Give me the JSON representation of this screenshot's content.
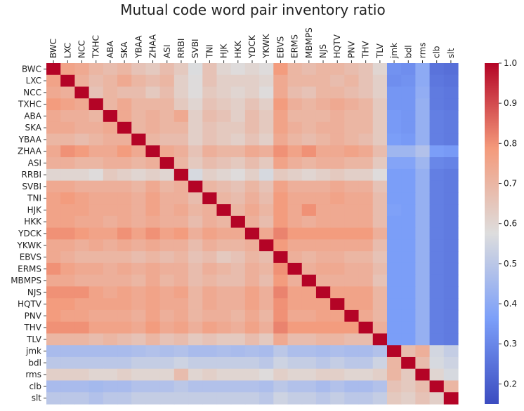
{
  "chart_data": {
    "type": "heatmap",
    "title": "Mutual code word pair inventory ratio",
    "labels": [
      "BWC",
      "LXC",
      "NCC",
      "TXHC",
      "ABA",
      "SKA",
      "YBAA",
      "ZHAA",
      "ASI",
      "RRBI",
      "SVBI",
      "TNI",
      "HJK",
      "HKK",
      "YDCK",
      "YKWK",
      "EBVS",
      "ERMS",
      "MBMPS",
      "NJS",
      "HQTV",
      "PNV",
      "THV",
      "TLV",
      "jmk",
      "bdl",
      "rms",
      "clb",
      "slt"
    ],
    "x_tick_labels": [
      "BWC",
      "LXC",
      "NCC",
      "TXHC",
      "ABA",
      "SKA",
      "YBAA",
      "ZHAA",
      "ASI",
      "RRBI",
      "SVBI",
      "TNI",
      "HJK",
      "HKK",
      "YDCK",
      "YKWK",
      "EBVS",
      "ERMS",
      "MBMPS",
      "NJS",
      "HQTV",
      "PNV",
      "THV",
      "TLV",
      "jmk",
      "bdl",
      "rms",
      "clb",
      "slt"
    ],
    "y_tick_labels": [
      "BWC",
      "LXC",
      "NCC",
      "TXHC",
      "ABA",
      "SKA",
      "YBAA",
      "ZHAA",
      "ASI",
      "RRBI",
      "SVBI",
      "TNI",
      "HJK",
      "HKK",
      "YDCK",
      "YKWK",
      "EBVS",
      "ERMS",
      "MBMPS",
      "NJS",
      "HQTV",
      "PNV",
      "THV",
      "TLV",
      "jmk",
      "bdl",
      "rms",
      "clb",
      "slt"
    ],
    "colorbar": {
      "min": 0.15,
      "max": 1.0,
      "ticks": [
        "1.0",
        "0.9",
        "0.8",
        "0.7",
        "0.6",
        "0.5",
        "0.4",
        "0.3",
        "0.2"
      ],
      "colormap": "coolwarm"
    },
    "values": [
      [
        1.0,
        0.76,
        0.74,
        0.7,
        0.68,
        0.7,
        0.66,
        0.64,
        0.68,
        0.64,
        0.57,
        0.66,
        0.6,
        0.58,
        0.6,
        0.58,
        0.78,
        0.7,
        0.68,
        0.7,
        0.7,
        0.68,
        0.66,
        0.6,
        0.33,
        0.32,
        0.4,
        0.25,
        0.24
      ],
      [
        0.76,
        1.0,
        0.72,
        0.68,
        0.7,
        0.74,
        0.7,
        0.68,
        0.7,
        0.62,
        0.58,
        0.66,
        0.62,
        0.62,
        0.62,
        0.6,
        0.74,
        0.7,
        0.7,
        0.7,
        0.68,
        0.7,
        0.66,
        0.62,
        0.32,
        0.33,
        0.4,
        0.26,
        0.25
      ],
      [
        0.74,
        0.72,
        1.0,
        0.66,
        0.7,
        0.68,
        0.68,
        0.64,
        0.68,
        0.62,
        0.58,
        0.64,
        0.62,
        0.6,
        0.62,
        0.58,
        0.74,
        0.68,
        0.66,
        0.7,
        0.7,
        0.68,
        0.66,
        0.62,
        0.34,
        0.34,
        0.41,
        0.27,
        0.26
      ],
      [
        0.78,
        0.76,
        0.74,
        1.0,
        0.7,
        0.74,
        0.7,
        0.7,
        0.7,
        0.64,
        0.6,
        0.66,
        0.64,
        0.62,
        0.66,
        0.62,
        0.78,
        0.72,
        0.7,
        0.72,
        0.74,
        0.72,
        0.7,
        0.64,
        0.34,
        0.34,
        0.42,
        0.27,
        0.26
      ],
      [
        0.74,
        0.72,
        0.72,
        0.7,
        1.0,
        0.74,
        0.7,
        0.72,
        0.7,
        0.74,
        0.62,
        0.68,
        0.66,
        0.62,
        0.68,
        0.64,
        0.76,
        0.7,
        0.7,
        0.7,
        0.72,
        0.7,
        0.7,
        0.64,
        0.35,
        0.34,
        0.42,
        0.28,
        0.27
      ],
      [
        0.74,
        0.74,
        0.72,
        0.72,
        0.74,
        1.0,
        0.7,
        0.72,
        0.7,
        0.7,
        0.62,
        0.66,
        0.64,
        0.64,
        0.68,
        0.64,
        0.76,
        0.72,
        0.7,
        0.72,
        0.72,
        0.7,
        0.7,
        0.64,
        0.35,
        0.34,
        0.42,
        0.28,
        0.27
      ],
      [
        0.7,
        0.7,
        0.68,
        0.7,
        0.72,
        0.72,
        1.0,
        0.7,
        0.68,
        0.68,
        0.62,
        0.66,
        0.64,
        0.62,
        0.66,
        0.62,
        0.74,
        0.7,
        0.68,
        0.7,
        0.72,
        0.7,
        0.68,
        0.64,
        0.36,
        0.35,
        0.42,
        0.28,
        0.27
      ],
      [
        0.74,
        0.8,
        0.78,
        0.74,
        0.74,
        0.78,
        0.74,
        1.0,
        0.74,
        0.72,
        0.66,
        0.72,
        0.7,
        0.7,
        0.74,
        0.72,
        0.8,
        0.76,
        0.8,
        0.74,
        0.74,
        0.76,
        0.74,
        0.68,
        0.44,
        0.44,
        0.48,
        0.36,
        0.35
      ],
      [
        0.72,
        0.72,
        0.7,
        0.7,
        0.72,
        0.72,
        0.7,
        0.72,
        1.0,
        0.7,
        0.64,
        0.68,
        0.66,
        0.64,
        0.68,
        0.64,
        0.76,
        0.72,
        0.7,
        0.72,
        0.72,
        0.7,
        0.7,
        0.64,
        0.38,
        0.38,
        0.44,
        0.3,
        0.29
      ],
      [
        0.6,
        0.6,
        0.6,
        0.58,
        0.64,
        0.62,
        0.6,
        0.62,
        0.6,
        1.0,
        0.56,
        0.62,
        0.6,
        0.58,
        0.62,
        0.56,
        0.64,
        0.62,
        0.6,
        0.62,
        0.64,
        0.62,
        0.62,
        0.58,
        0.36,
        0.36,
        0.42,
        0.28,
        0.27
      ],
      [
        0.74,
        0.74,
        0.72,
        0.72,
        0.72,
        0.72,
        0.7,
        0.74,
        0.7,
        0.72,
        1.0,
        0.7,
        0.68,
        0.66,
        0.7,
        0.66,
        0.76,
        0.72,
        0.72,
        0.72,
        0.74,
        0.72,
        0.72,
        0.66,
        0.36,
        0.36,
        0.42,
        0.28,
        0.27
      ],
      [
        0.76,
        0.78,
        0.76,
        0.74,
        0.74,
        0.74,
        0.72,
        0.76,
        0.72,
        0.72,
        0.68,
        1.0,
        0.7,
        0.68,
        0.72,
        0.68,
        0.78,
        0.74,
        0.74,
        0.74,
        0.76,
        0.74,
        0.74,
        0.68,
        0.36,
        0.36,
        0.42,
        0.28,
        0.27
      ],
      [
        0.76,
        0.76,
        0.76,
        0.74,
        0.74,
        0.74,
        0.72,
        0.76,
        0.72,
        0.74,
        0.7,
        0.72,
        1.0,
        0.7,
        0.74,
        0.7,
        0.78,
        0.74,
        0.8,
        0.74,
        0.74,
        0.74,
        0.74,
        0.68,
        0.37,
        0.36,
        0.42,
        0.28,
        0.27
      ],
      [
        0.76,
        0.76,
        0.74,
        0.74,
        0.72,
        0.74,
        0.72,
        0.74,
        0.72,
        0.72,
        0.68,
        0.72,
        0.7,
        1.0,
        0.72,
        0.68,
        0.78,
        0.74,
        0.72,
        0.74,
        0.74,
        0.74,
        0.74,
        0.68,
        0.36,
        0.36,
        0.42,
        0.28,
        0.27
      ],
      [
        0.8,
        0.8,
        0.78,
        0.76,
        0.76,
        0.8,
        0.76,
        0.8,
        0.76,
        0.78,
        0.72,
        0.76,
        0.74,
        0.74,
        1.0,
        0.74,
        0.82,
        0.78,
        0.78,
        0.78,
        0.78,
        0.78,
        0.78,
        0.72,
        0.36,
        0.36,
        0.42,
        0.28,
        0.27
      ],
      [
        0.74,
        0.74,
        0.72,
        0.74,
        0.72,
        0.74,
        0.72,
        0.74,
        0.72,
        0.72,
        0.68,
        0.72,
        0.7,
        0.7,
        0.72,
        1.0,
        0.78,
        0.74,
        0.74,
        0.74,
        0.74,
        0.74,
        0.74,
        0.68,
        0.36,
        0.36,
        0.42,
        0.28,
        0.27
      ],
      [
        0.74,
        0.72,
        0.7,
        0.7,
        0.7,
        0.7,
        0.68,
        0.7,
        0.68,
        0.7,
        0.66,
        0.68,
        0.64,
        0.66,
        0.7,
        0.68,
        1.0,
        0.72,
        0.7,
        0.72,
        0.72,
        0.7,
        0.7,
        0.66,
        0.36,
        0.36,
        0.42,
        0.28,
        0.27
      ],
      [
        0.8,
        0.76,
        0.74,
        0.74,
        0.72,
        0.74,
        0.72,
        0.74,
        0.72,
        0.72,
        0.68,
        0.72,
        0.7,
        0.68,
        0.72,
        0.7,
        0.8,
        1.0,
        0.72,
        0.74,
        0.74,
        0.72,
        0.72,
        0.68,
        0.36,
        0.36,
        0.42,
        0.28,
        0.27
      ],
      [
        0.74,
        0.74,
        0.72,
        0.72,
        0.72,
        0.72,
        0.7,
        0.74,
        0.7,
        0.72,
        0.68,
        0.7,
        0.68,
        0.68,
        0.72,
        0.68,
        0.78,
        0.72,
        1.0,
        0.72,
        0.72,
        0.72,
        0.72,
        0.66,
        0.36,
        0.36,
        0.42,
        0.28,
        0.27
      ],
      [
        0.8,
        0.8,
        0.8,
        0.76,
        0.74,
        0.76,
        0.74,
        0.76,
        0.74,
        0.76,
        0.7,
        0.74,
        0.72,
        0.72,
        0.76,
        0.72,
        0.82,
        0.76,
        0.76,
        1.0,
        0.76,
        0.76,
        0.76,
        0.7,
        0.36,
        0.36,
        0.42,
        0.28,
        0.27
      ],
      [
        0.78,
        0.78,
        0.76,
        0.76,
        0.76,
        0.76,
        0.74,
        0.76,
        0.74,
        0.74,
        0.7,
        0.74,
        0.72,
        0.72,
        0.76,
        0.72,
        0.8,
        0.76,
        0.76,
        0.76,
        1.0,
        0.76,
        0.76,
        0.7,
        0.36,
        0.36,
        0.42,
        0.28,
        0.27
      ],
      [
        0.78,
        0.76,
        0.76,
        0.74,
        0.74,
        0.74,
        0.72,
        0.76,
        0.72,
        0.74,
        0.7,
        0.72,
        0.72,
        0.7,
        0.74,
        0.7,
        0.8,
        0.74,
        0.74,
        0.76,
        0.76,
        1.0,
        0.74,
        0.7,
        0.36,
        0.36,
        0.42,
        0.28,
        0.27
      ],
      [
        0.8,
        0.8,
        0.8,
        0.76,
        0.76,
        0.76,
        0.74,
        0.78,
        0.74,
        0.76,
        0.72,
        0.76,
        0.74,
        0.72,
        0.76,
        0.72,
        0.82,
        0.78,
        0.78,
        0.78,
        0.78,
        0.78,
        1.0,
        0.72,
        0.36,
        0.36,
        0.42,
        0.28,
        0.27
      ],
      [
        0.7,
        0.7,
        0.7,
        0.68,
        0.7,
        0.68,
        0.66,
        0.7,
        0.66,
        0.68,
        0.64,
        0.66,
        0.64,
        0.64,
        0.68,
        0.64,
        0.74,
        0.68,
        0.68,
        0.7,
        0.7,
        0.68,
        0.68,
        1.0,
        0.36,
        0.36,
        0.42,
        0.28,
        0.27
      ],
      [
        0.46,
        0.46,
        0.46,
        0.46,
        0.46,
        0.46,
        0.47,
        0.48,
        0.47,
        0.48,
        0.46,
        0.46,
        0.47,
        0.46,
        0.47,
        0.46,
        0.5,
        0.47,
        0.47,
        0.46,
        0.47,
        0.46,
        0.46,
        0.48,
        1.0,
        0.68,
        0.72,
        0.55,
        0.52
      ],
      [
        0.5,
        0.5,
        0.5,
        0.5,
        0.5,
        0.5,
        0.52,
        0.52,
        0.52,
        0.54,
        0.52,
        0.52,
        0.52,
        0.52,
        0.52,
        0.5,
        0.54,
        0.52,
        0.52,
        0.5,
        0.52,
        0.5,
        0.5,
        0.54,
        0.7,
        1.0,
        0.68,
        0.56,
        0.54
      ],
      [
        0.62,
        0.62,
        0.62,
        0.6,
        0.6,
        0.62,
        0.6,
        0.6,
        0.6,
        0.68,
        0.6,
        0.62,
        0.6,
        0.6,
        0.6,
        0.58,
        0.62,
        0.6,
        0.6,
        0.62,
        0.62,
        0.6,
        0.6,
        0.62,
        0.7,
        0.64,
        1.0,
        0.6,
        0.56
      ],
      [
        0.46,
        0.46,
        0.46,
        0.45,
        0.46,
        0.46,
        0.48,
        0.48,
        0.48,
        0.5,
        0.48,
        0.48,
        0.48,
        0.48,
        0.48,
        0.47,
        0.5,
        0.48,
        0.48,
        0.46,
        0.48,
        0.46,
        0.46,
        0.48,
        0.66,
        0.64,
        0.68,
        1.0,
        0.7
      ],
      [
        0.5,
        0.5,
        0.5,
        0.48,
        0.5,
        0.5,
        0.52,
        0.52,
        0.52,
        0.52,
        0.52,
        0.52,
        0.52,
        0.52,
        0.52,
        0.5,
        0.54,
        0.52,
        0.52,
        0.5,
        0.52,
        0.5,
        0.5,
        0.52,
        0.64,
        0.62,
        0.66,
        0.62,
        1.0
      ]
    ]
  }
}
